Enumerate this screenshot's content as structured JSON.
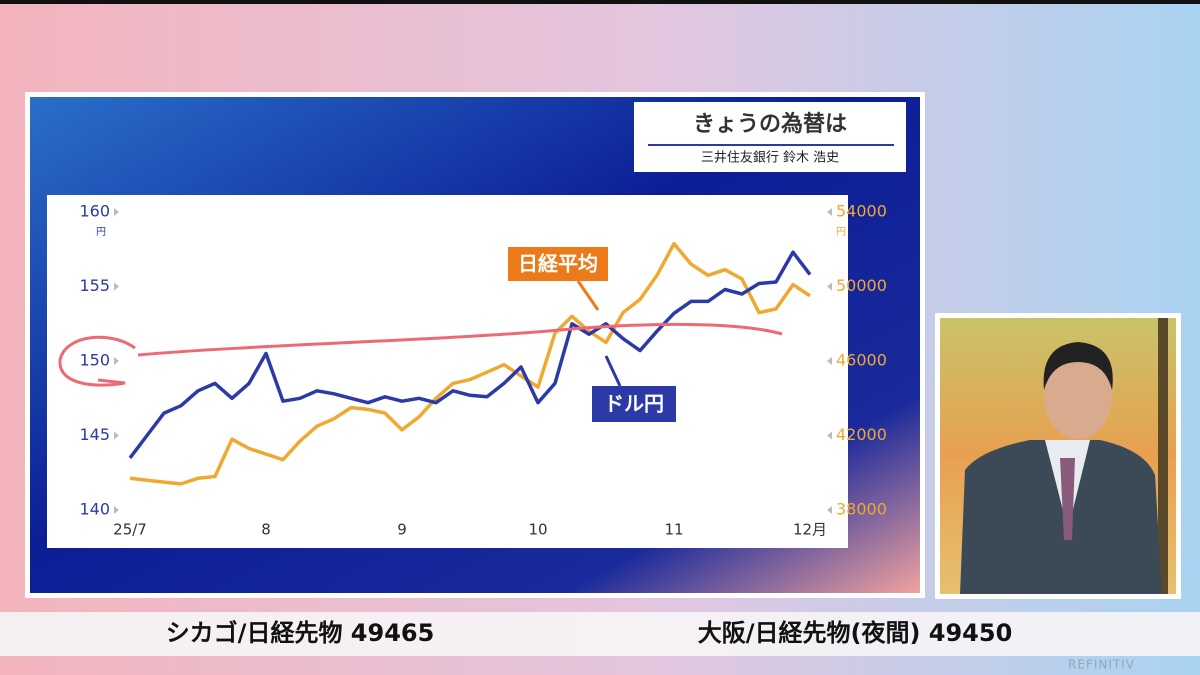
{
  "header": {
    "title": "きょうの為替は",
    "presenter": "三井住友銀行 鈴木 浩史"
  },
  "ticker": [
    "シカゴ/日経先物 49465",
    "大阪/日経先物(夜間) 49450"
  ],
  "branding": "REFINITIV",
  "chart_data": {
    "type": "line",
    "categories": [
      "25/7",
      null,
      null,
      null,
      null,
      null,
      null,
      null,
      "8",
      null,
      null,
      null,
      null,
      null,
      null,
      null,
      "9",
      null,
      null,
      null,
      null,
      null,
      null,
      null,
      "10",
      null,
      null,
      null,
      null,
      null,
      null,
      null,
      "11",
      null,
      null,
      null,
      null,
      null,
      null,
      null,
      "12月"
    ],
    "series": [
      {
        "name": "ドル円",
        "color": "#2b3aa6",
        "values": [
          143.5,
          145,
          146.5,
          147,
          148,
          148.5,
          147.5,
          148.5,
          150.5,
          147.3,
          147.5,
          148,
          147.8,
          147.5,
          147.2,
          147.6,
          147.3,
          147.5,
          147.2,
          148,
          147.7,
          147.6,
          148.5,
          149.6,
          147.2,
          148.5,
          152.5,
          151.8,
          152.5,
          151.5,
          150.7,
          152,
          153.2,
          154,
          154,
          154.8,
          154.5,
          155.2,
          155.3,
          157.3,
          155.8
        ]
      },
      {
        "name": "日経平均",
        "color": "#f0a830",
        "axis": "y2",
        "values": [
          39700,
          39600,
          39500,
          39400,
          39700,
          39800,
          41800,
          41300,
          41000,
          40700,
          41700,
          42500,
          42900,
          43500,
          43400,
          43200,
          42300,
          43000,
          44000,
          44800,
          45000,
          45400,
          45800,
          45200,
          44600,
          47500,
          48400,
          47600,
          47000,
          48600,
          49300,
          50600,
          52300,
          51200,
          50600,
          50900,
          50400,
          48600,
          48800,
          50100,
          49500
        ]
      }
    ],
    "ylim": [
      140,
      160
    ],
    "yticks": [
      140,
      145,
      150,
      155,
      160
    ],
    "yunit": "円",
    "y2lim": [
      38000,
      54000
    ],
    "y2ticks": [
      38000,
      42000,
      46000,
      50000,
      54000
    ],
    "y2unit": "円"
  }
}
